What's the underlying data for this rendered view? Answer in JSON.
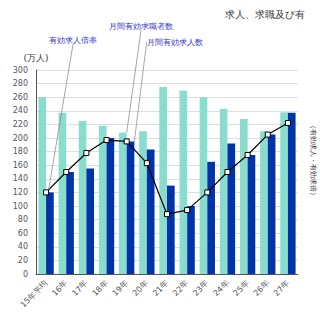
{
  "chart_data": {
    "type": "bar",
    "title": "求人、求職及び有",
    "ylabel": "(万人)",
    "annotations": [
      "（有効求人・有効求倍）"
    ],
    "categories": [
      "15年平均",
      "16年",
      "17年",
      "18年",
      "19年",
      "20年",
      "21年",
      "22年",
      "23年",
      "24年",
      "25年",
      "26年",
      "27年"
    ],
    "series": [
      {
        "name": "月間有効求職者数",
        "type": "bar",
        "color": "#88DDCC",
        "values": [
          260,
          237,
          225,
          218,
          208,
          210,
          275,
          270,
          260,
          243,
          228,
          210,
          238
        ]
      },
      {
        "name": "月間有効求人数",
        "type": "bar",
        "color": "#0033AA",
        "values": [
          120,
          150,
          155,
          200,
          195,
          183,
          130,
          100,
          165,
          192,
          175,
          205,
          237
        ]
      },
      {
        "name": "有効求人倍率",
        "type": "line",
        "color": "#000000",
        "marker": "square",
        "values": [
          120,
          150,
          178,
          197,
          195,
          163,
          88,
          94,
          120,
          150,
          175,
          205,
          222
        ]
      }
    ],
    "ylim": [
      0,
      300
    ],
    "yticks": [
      0,
      20,
      40,
      60,
      80,
      100,
      120,
      140,
      160,
      180,
      200,
      220,
      240,
      260,
      280,
      300
    ],
    "grid": true
  }
}
